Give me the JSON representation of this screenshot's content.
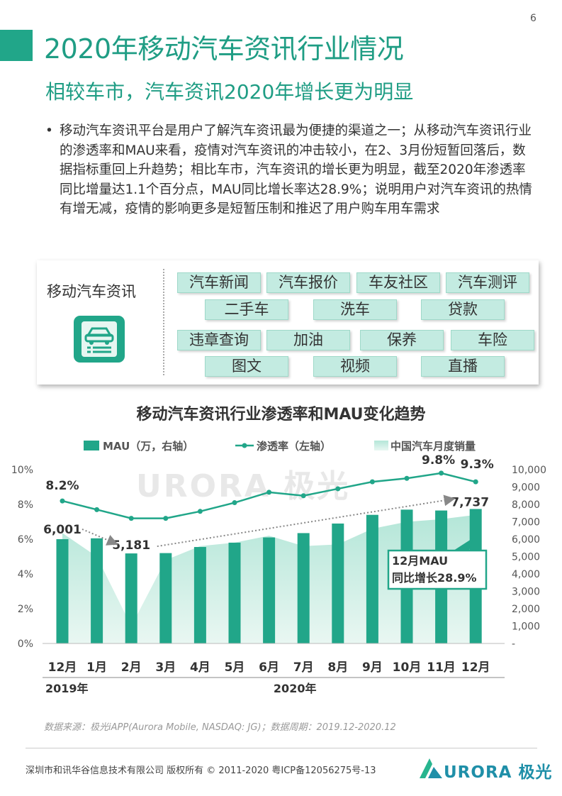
{
  "page_number": "6",
  "title": "2020年移动汽车资讯行业情况",
  "subtitle": "相较车市，汽车资讯2020年增长更为明显",
  "bullet": "移动汽车资讯平台是用户了解汽车资讯最为便捷的渠道之一；从移动汽车资讯行业的渗透率和MAU来看，疫情对汽车资讯的冲击较小，在2、3月份短暂回落后，数据指标重回上升趋势；相比车市，汽车资讯的增长更为明显，截至2020年渗透率同比增量达1.1个百分点，MAU同比增长率达28.9%；说明用户对汽车资讯的热情有增无减，疫情的影响更多是短暂压制和推迟了用户购车用车需求",
  "info_box": {
    "label": "移动汽车资讯",
    "tags": [
      "汽车新闻",
      "汽车报价",
      "车友社区",
      "汽车测评",
      "二手车",
      "洗车",
      "贷款",
      "违章查询",
      "加油",
      "保养",
      "车险",
      "图文",
      "视频",
      "直播"
    ]
  },
  "colors": {
    "accent": "#1f9d84",
    "bar": "#21a689",
    "line": "#21a689",
    "area": "#c6ede3"
  },
  "chart_data": {
    "type": "bar",
    "title": "移动汽车资讯行业渗透率和MAU变化趋势",
    "categories": [
      "12月",
      "1月",
      "2月",
      "3月",
      "4月",
      "5月",
      "6月",
      "7月",
      "8月",
      "9月",
      "10月",
      "11月",
      "12月"
    ],
    "year_labels": [
      "2019年",
      "2020年"
    ],
    "legend": [
      "MAU（万，右轴）",
      "渗透率（左轴）",
      "中国汽车月度销量"
    ],
    "series": [
      {
        "name": "MAU（万，右轴）",
        "type": "bar",
        "axis": "right",
        "values": [
          6001,
          6050,
          5181,
          5200,
          5550,
          5800,
          6100,
          6350,
          6900,
          7400,
          7700,
          7650,
          7737
        ]
      },
      {
        "name": "渗透率（左轴）",
        "type": "line",
        "axis": "left",
        "values": [
          8.2,
          7.7,
          7.2,
          7.2,
          7.6,
          8.1,
          8.7,
          8.5,
          8.9,
          9.3,
          9.5,
          9.8,
          9.3
        ]
      },
      {
        "name": "中国汽车月度销量",
        "type": "area",
        "axis": "right",
        "values": [
          6350,
          5000,
          1000,
          4800,
          5600,
          5800,
          6200,
          5600,
          5700,
          6600,
          7000,
          7150,
          7400
        ]
      }
    ],
    "ylim_left": [
      0,
      10
    ],
    "yticks_left": [
      "0%",
      "2%",
      "4%",
      "6%",
      "8%",
      "10%"
    ],
    "ylim_right": [
      0,
      10000
    ],
    "yticks_right": [
      "-",
      "1,000",
      "2,000",
      "3,000",
      "4,000",
      "5,000",
      "6,000",
      "7,000",
      "8,000",
      "9,000",
      "10,000"
    ],
    "data_labels": {
      "penetration_first": "8.2%",
      "penetration_peak": "9.8%",
      "penetration_last": "9.3%",
      "mau_first": "6,001",
      "mau_low": "5,181",
      "mau_last": "7,737"
    },
    "callout": [
      "12月MAU",
      "同比增长28.9%"
    ],
    "watermark": "URORA 极光"
  },
  "source": "数据来源：极光iAPP(Aurora Mobile, NASDAQ: JG)；数据周期：2019.12-2020.12",
  "footer": "深圳市和讯华谷信息技术有限公司 版权所有 © 2011-2020 粤ICP备12056275号-13",
  "logo_text": "URORA 极光"
}
